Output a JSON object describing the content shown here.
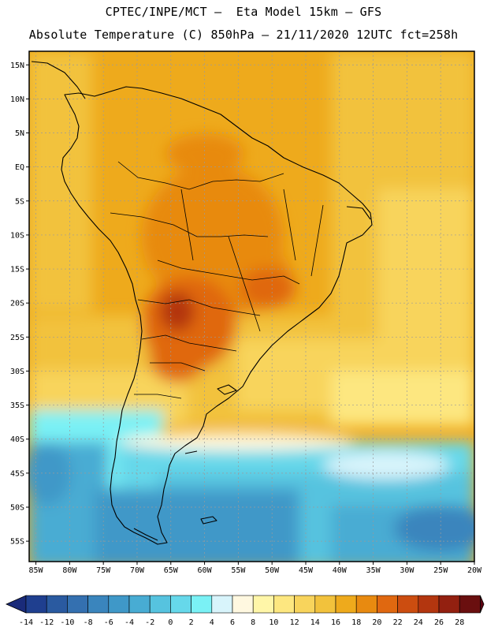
{
  "header": {
    "line1": "CPTEC/INPE/MCT –  Eta Model 15km – GFS",
    "line2": "Absolute Temperature (C) 850hPa – 21/11/2020 12UTC fct=258h"
  },
  "map": {
    "lat_labels": [
      "15N",
      "10N",
      "5N",
      "EQ",
      "5S",
      "10S",
      "15S",
      "20S",
      "25S",
      "30S",
      "35S",
      "40S",
      "45S",
      "50S",
      "55S"
    ],
    "lon_labels": [
      "85W",
      "80W",
      "75W",
      "70W",
      "65W",
      "60W",
      "55W",
      "50W",
      "45W",
      "40W",
      "35W",
      "30W",
      "25W",
      "20W"
    ],
    "lat_range": [
      17,
      -58
    ],
    "lon_range": [
      -86,
      -20
    ]
  },
  "colorbar": {
    "labels": [
      "-14",
      "-12",
      "-10",
      "-8",
      "-6",
      "-4",
      "-2",
      "0",
      "2",
      "4",
      "6",
      "8",
      "10",
      "12",
      "14",
      "16",
      "18",
      "20",
      "22",
      "24",
      "26",
      "28"
    ],
    "colors": [
      "#1f3f8f",
      "#2a5aa0",
      "#3470b0",
      "#3a85bd",
      "#3f98c8",
      "#48acd3",
      "#56c3df",
      "#66d8ea",
      "#7af1f5",
      "#d8f4fb",
      "#fff8e0",
      "#fff6a8",
      "#fde780",
      "#f8d45c",
      "#f2c23c",
      "#eeaa1c",
      "#e88a10",
      "#e06810",
      "#cc4d10",
      "#b3360f",
      "#932010",
      "#6a0f0f"
    ],
    "min_color": "#1a2b7a",
    "max_color": "#5a0010"
  }
}
